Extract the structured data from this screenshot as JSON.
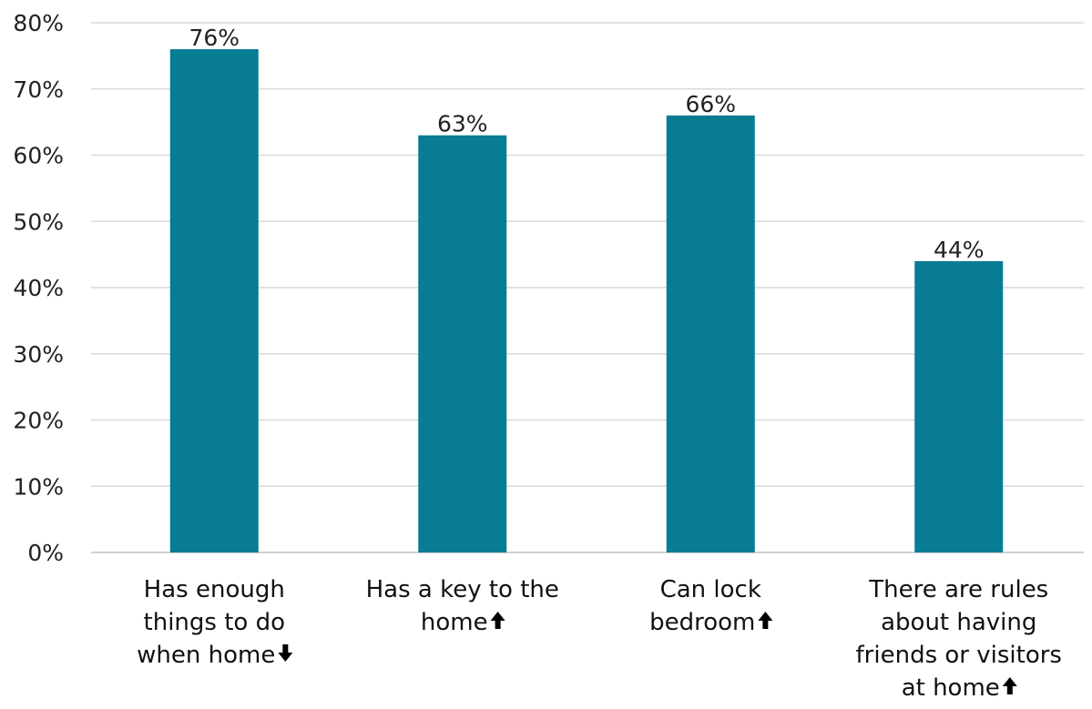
{
  "chart_data": {
    "type": "bar",
    "title": "",
    "xlabel": "",
    "ylabel": "",
    "ylim": [
      0,
      80
    ],
    "y_ticks": [
      "0%",
      "10%",
      "20%",
      "30%",
      "40%",
      "50%",
      "60%",
      "70%",
      "80%"
    ],
    "y_tick_values": [
      0,
      10,
      20,
      30,
      40,
      50,
      60,
      70,
      80
    ],
    "grid": true,
    "legend": "none",
    "categories": [
      "Has enough things to do when home",
      "Has a key to the home",
      "Can lock bedroom",
      "There are rules about having friends or visitors at home"
    ],
    "category_label_lines": [
      [
        "Has enough",
        "things to do",
        "when home"
      ],
      [
        "Has a key to the",
        "home"
      ],
      [
        "Can lock",
        "bedroom"
      ],
      [
        "There are rules",
        "about having",
        "friends or visitors",
        "at home"
      ]
    ],
    "trend_indicators": [
      "down",
      "up",
      "up",
      "up"
    ],
    "values": [
      76,
      63,
      66,
      44
    ],
    "data_labels": [
      "76%",
      "63%",
      "66%",
      "44%"
    ],
    "bar_color": "#077c93",
    "grid_color": "#d9d9d9"
  }
}
